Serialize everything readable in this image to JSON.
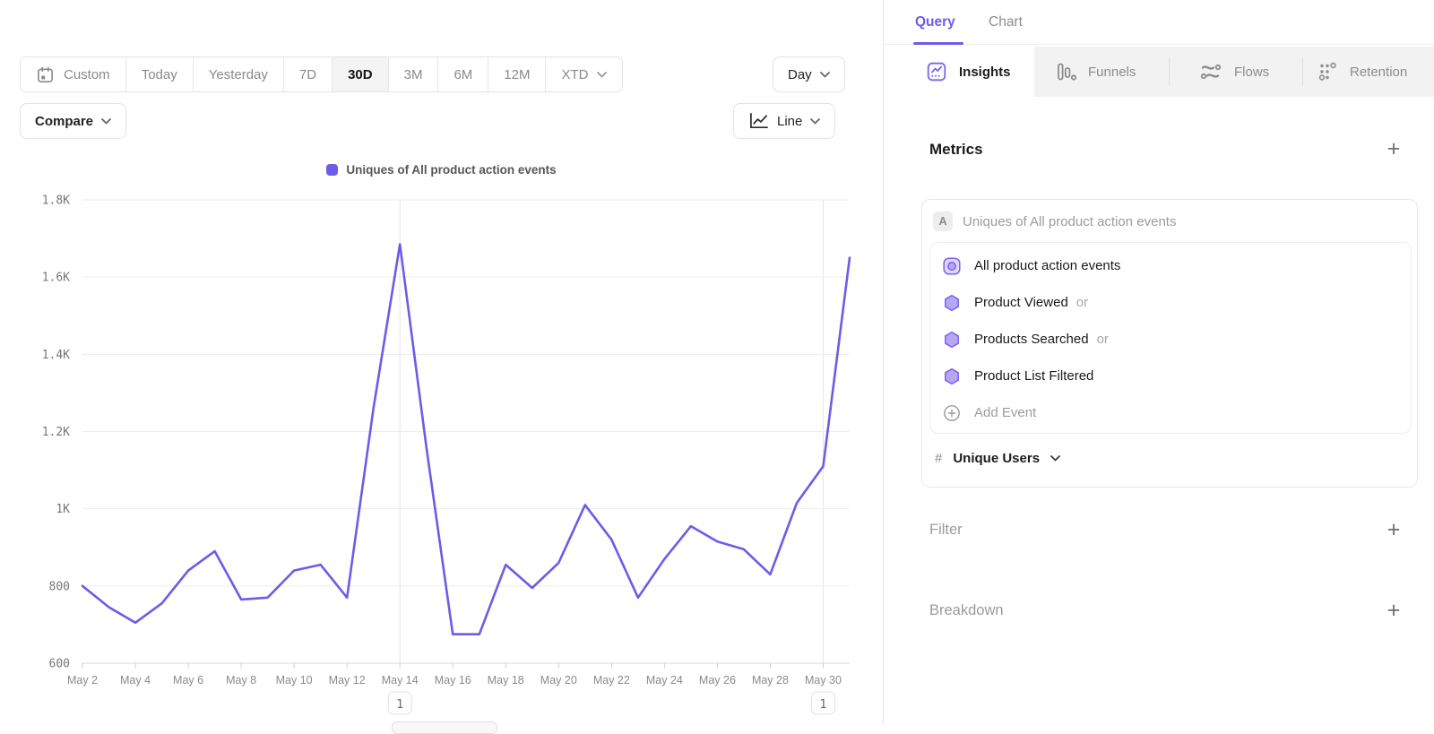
{
  "accent_color": "#6c5ce8",
  "toolbar": {
    "date_ranges": [
      {
        "label": "Custom",
        "icon": "calendar-icon"
      },
      {
        "label": "Today"
      },
      {
        "label": "Yesterday"
      },
      {
        "label": "7D"
      },
      {
        "label": "30D"
      },
      {
        "label": "3M"
      },
      {
        "label": "6M"
      },
      {
        "label": "12M"
      },
      {
        "label": "XTD",
        "chevron": true
      }
    ],
    "selected_range": "30D",
    "granularity": "Day",
    "compare_label": "Compare",
    "chart_type": "Line",
    "chart_type_icon": "line-chart-icon"
  },
  "right_panel": {
    "tabs": [
      {
        "label": "Query",
        "active": true
      },
      {
        "label": "Chart",
        "active": false
      }
    ],
    "report_tabs": [
      {
        "label": "Insights",
        "icon": "insights-icon",
        "active": true
      },
      {
        "label": "Funnels",
        "icon": "funnels-icon",
        "active": false
      },
      {
        "label": "Flows",
        "icon": "flows-icon",
        "active": false
      },
      {
        "label": "Retention",
        "icon": "retention-icon",
        "active": false
      }
    ],
    "metrics": {
      "title": "Metrics",
      "add_label": "+",
      "group_badge": "A",
      "group_title": "Uniques of All product action events",
      "events": [
        {
          "name": "All product action events",
          "icon": "all-events-icon",
          "suffix": ""
        },
        {
          "name": "Product Viewed",
          "icon": "event-hexagon-icon",
          "suffix": "or"
        },
        {
          "name": "Products Searched",
          "icon": "event-hexagon-icon",
          "suffix": "or"
        },
        {
          "name": "Product List Filtered",
          "icon": "event-hexagon-icon",
          "suffix": ""
        }
      ],
      "add_event_label": "Add Event",
      "add_event_icon": "add-circle-icon",
      "measurement_prefix": "#",
      "measurement_label": "Unique Users"
    },
    "filter": {
      "title": "Filter",
      "add_label": "+"
    },
    "breakdown": {
      "title": "Breakdown",
      "add_label": "+"
    }
  },
  "chart_data": {
    "type": "line",
    "legend": "Uniques of All product action events",
    "legend_position": "top-center",
    "line_color": "#6c5ce8",
    "grid": "horizontal",
    "ylim": [
      600,
      1800
    ],
    "y_ticks": [
      {
        "value": 600,
        "label": "600"
      },
      {
        "value": 800,
        "label": "800"
      },
      {
        "value": 1000,
        "label": "1K"
      },
      {
        "value": 1200,
        "label": "1.2K"
      },
      {
        "value": 1400,
        "label": "1.4K"
      },
      {
        "value": 1600,
        "label": "1.6K"
      },
      {
        "value": 1800,
        "label": "1.8K"
      }
    ],
    "x_tick_every": 2,
    "categories": [
      "May 2",
      "May 3",
      "May 4",
      "May 5",
      "May 6",
      "May 7",
      "May 8",
      "May 9",
      "May 10",
      "May 11",
      "May 12",
      "May 13",
      "May 14",
      "May 15",
      "May 16",
      "May 17",
      "May 18",
      "May 19",
      "May 20",
      "May 21",
      "May 22",
      "May 23",
      "May 24",
      "May 25",
      "May 26",
      "May 27",
      "May 28",
      "May 29",
      "May 30",
      "May 31"
    ],
    "series": [
      {
        "name": "Uniques of All product action events",
        "values": [
          800,
          745,
          705,
          755,
          840,
          890,
          765,
          770,
          840,
          855,
          770,
          1260,
          1685,
          1160,
          675,
          675,
          855,
          795,
          860,
          1010,
          920,
          770,
          870,
          955,
          915,
          895,
          830,
          1015,
          1110,
          1650
        ]
      }
    ],
    "annotations": [
      {
        "label": "1",
        "category": "May 14"
      },
      {
        "label": "1",
        "category": "May 30"
      }
    ]
  }
}
